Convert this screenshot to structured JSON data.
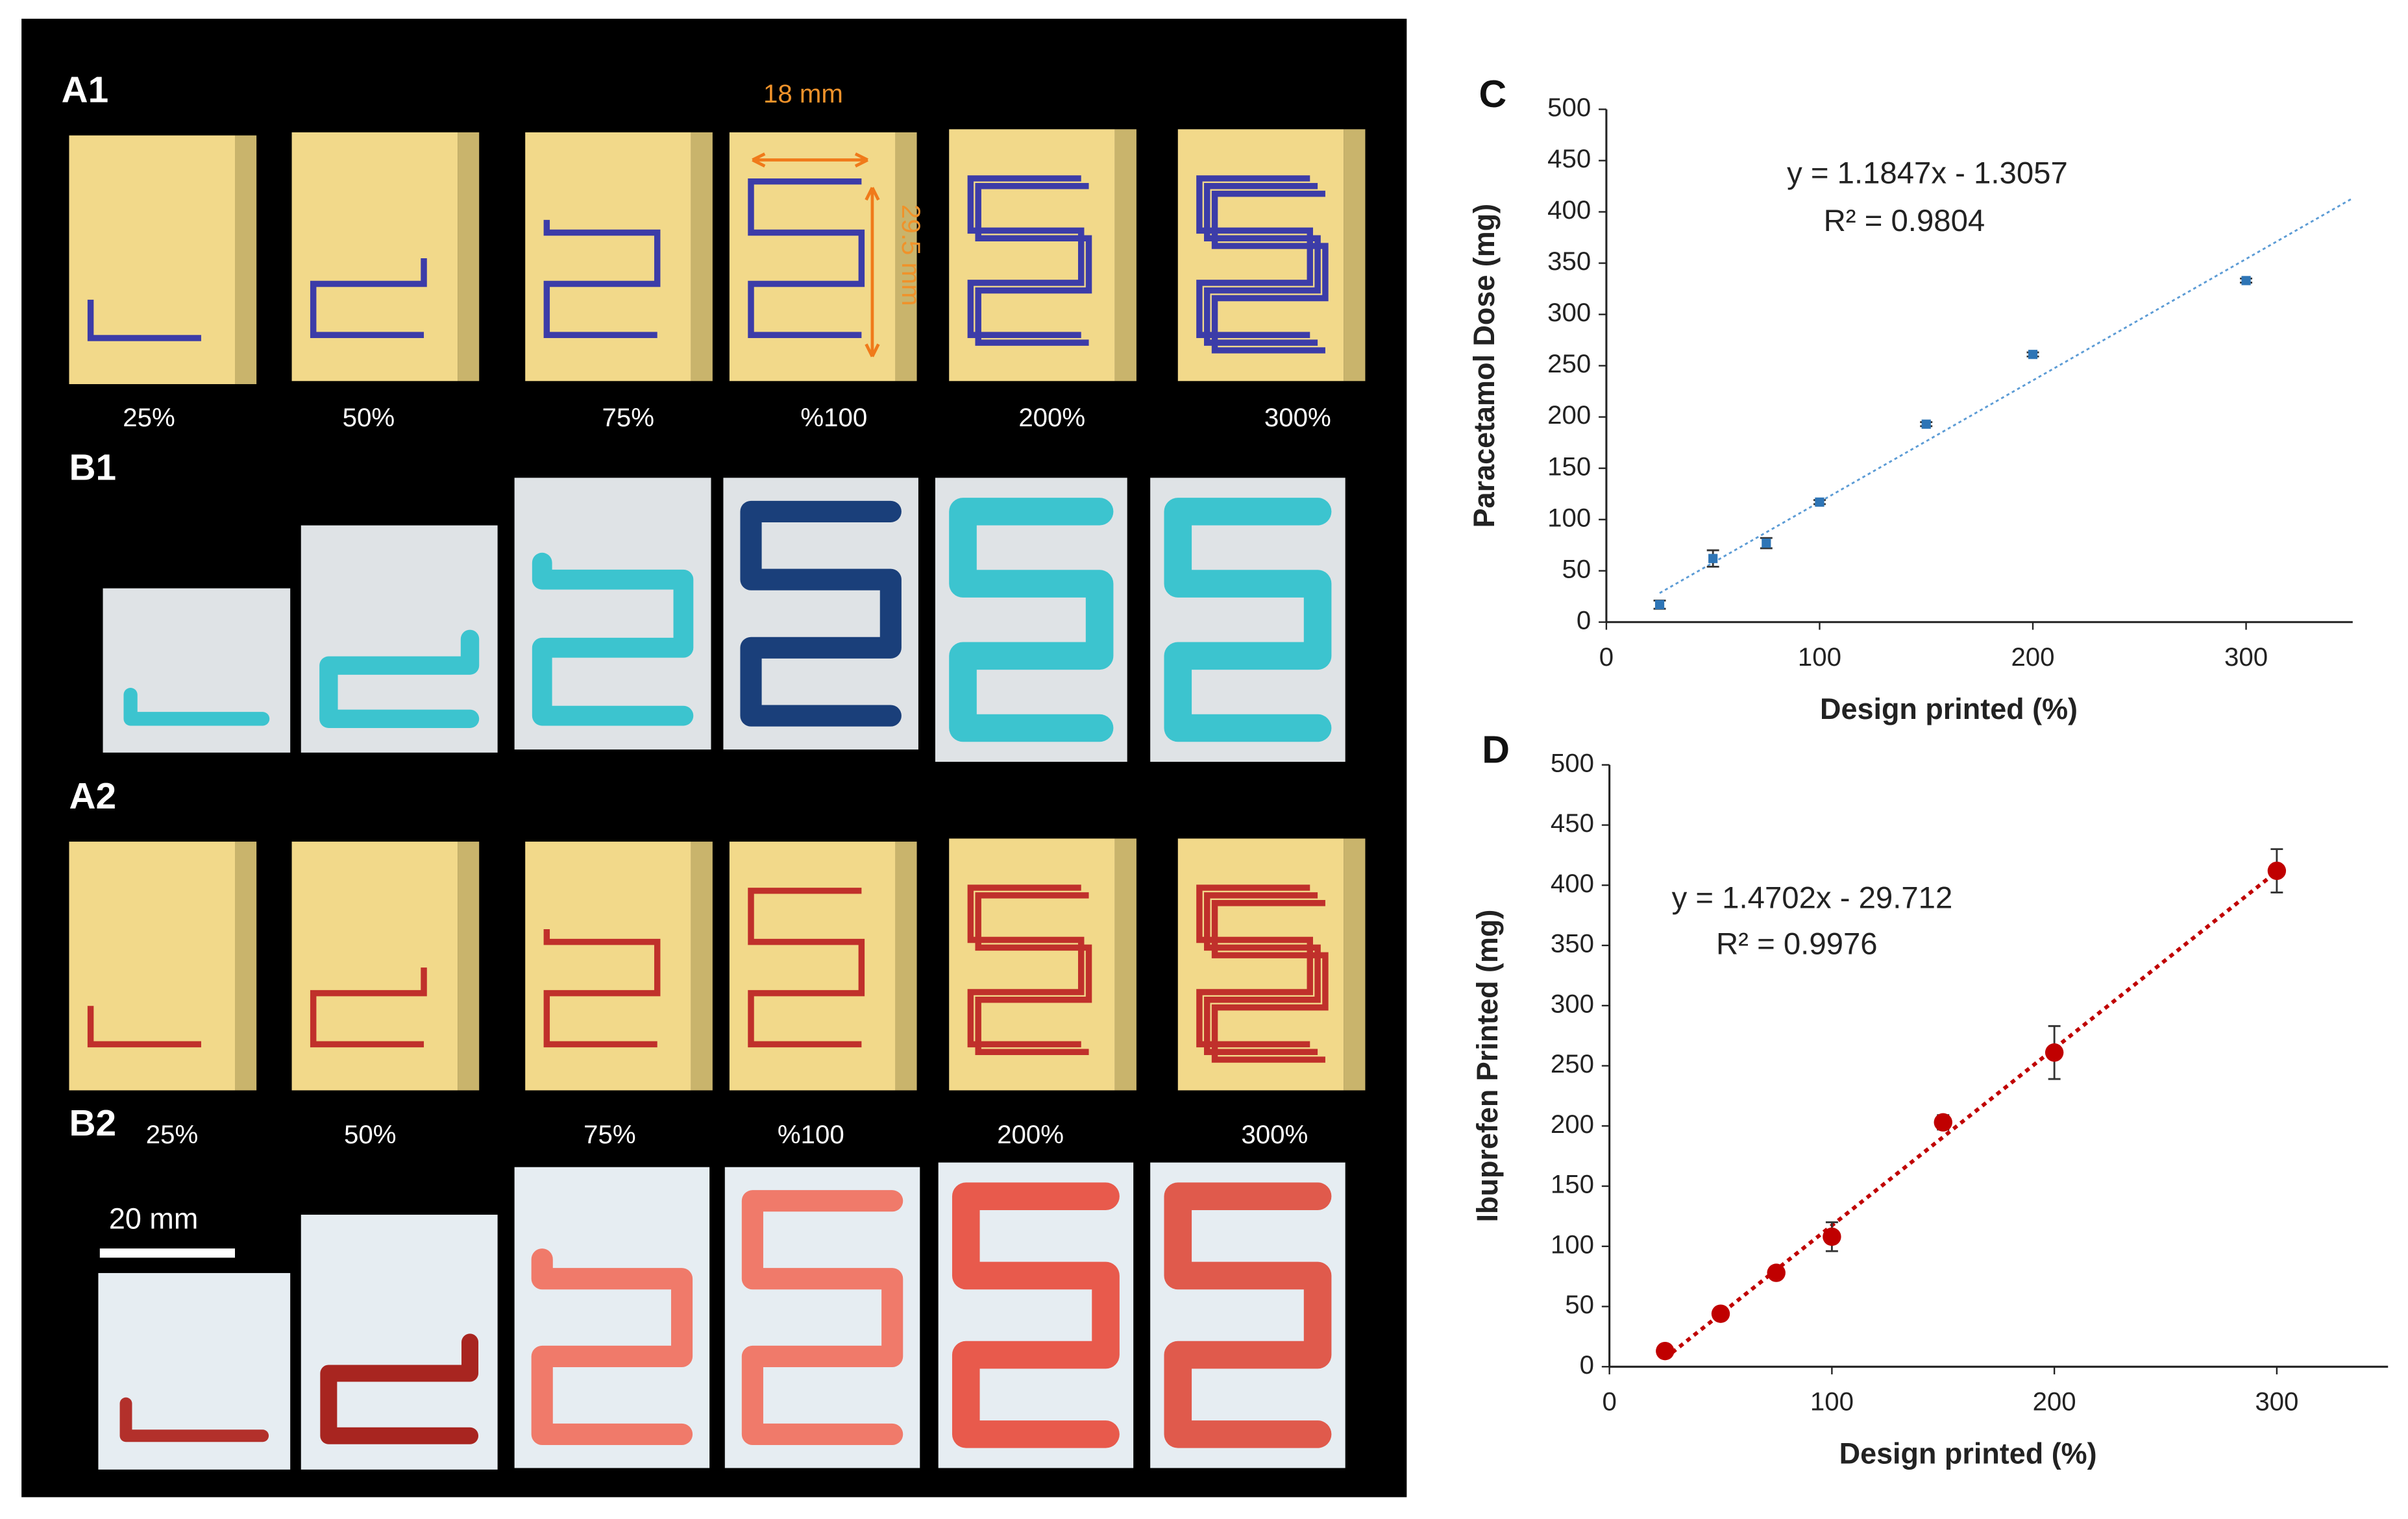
{
  "figure": {
    "rows": [
      {
        "label": "A1",
        "captions": [
          "25%",
          "50%",
          "75%",
          "%100",
          "200%",
          "300%"
        ]
      },
      {
        "label": "B1"
      },
      {
        "label": "A2",
        "captions": [
          "25%",
          "50%",
          "75%",
          "%100",
          "200%",
          "300%"
        ]
      },
      {
        "label": "B2"
      }
    ],
    "dimensions": {
      "width": "18 mm",
      "height": "29.5 mm",
      "scale_bar": "20 mm"
    }
  },
  "chart_data": [
    {
      "type": "scatter",
      "title": "C",
      "x_label": "Design printed (%)",
      "y_label": "Paracetamol Dose (mg)",
      "x": [
        25,
        50,
        75,
        100,
        150,
        200,
        300
      ],
      "values": [
        17,
        62,
        77,
        117,
        193,
        261,
        333
      ],
      "errors": [
        4,
        8,
        5,
        2,
        2,
        2,
        2
      ],
      "color": "#2e75b6",
      "marker": "square",
      "trendline": {
        "slope": 1.1847,
        "intercept": -1.3057,
        "x_range": [
          25,
          350
        ],
        "color": "#5b9bd5"
      },
      "annotations": [
        "y = 1.1847x - 1.3057",
        "R² = 0.9804"
      ],
      "xlim": [
        0,
        350
      ],
      "xticks": [
        0,
        100,
        200,
        300
      ],
      "ylim": [
        0,
        500
      ],
      "yticks": [
        0,
        50,
        100,
        150,
        200,
        250,
        300,
        350,
        400,
        450,
        500
      ],
      "grid": false
    },
    {
      "type": "scatter",
      "title": "D",
      "x_label": "Design printed (%)",
      "y_label": "Ibuprefen Printed (mg)",
      "x": [
        25,
        50,
        75,
        100,
        150,
        200,
        300
      ],
      "values": [
        13,
        44,
        78,
        108,
        203,
        261,
        412
      ],
      "errors": [
        1,
        2,
        2,
        12,
        6,
        22,
        18
      ],
      "color": "#c00000",
      "marker": "circle",
      "trendline": {
        "slope": 1.4702,
        "intercept": -29.712,
        "x_range": [
          25,
          300
        ],
        "color": "#c00000"
      },
      "annotations": [
        "y = 1.4702x - 29.712",
        "R² = 0.9976"
      ],
      "xlim": [
        0,
        350
      ],
      "xticks": [
        0,
        100,
        200,
        300
      ],
      "ylim": [
        0,
        500
      ],
      "yticks": [
        0,
        50,
        100,
        150,
        200,
        250,
        300,
        350,
        400,
        450,
        500
      ],
      "grid": false
    }
  ]
}
